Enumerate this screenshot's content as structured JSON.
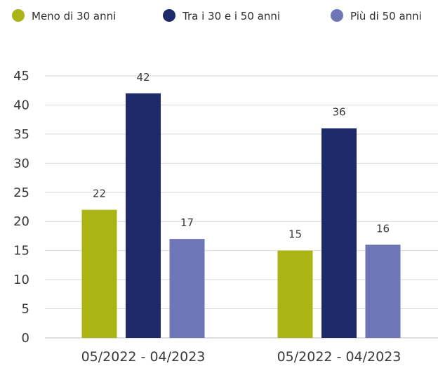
{
  "chart_data": {
    "type": "bar",
    "categories": [
      "05/2022 - 04/2023",
      "05/2022 - 04/2023"
    ],
    "series": [
      {
        "name": "Meno di 30 anni",
        "values": [
          22,
          15
        ],
        "color": "#aab515"
      },
      {
        "name": "Tra i 30 e i 50 anni",
        "values": [
          42,
          36
        ],
        "color": "#1f2a6b"
      },
      {
        "name": "Più di 50 anni",
        "values": [
          17,
          16
        ],
        "color": "#6f76b8"
      }
    ],
    "ylim": [
      0,
      45
    ],
    "yticks": [
      0,
      5,
      10,
      15,
      20,
      25,
      30,
      35,
      40,
      45
    ],
    "grid": true,
    "legend_position": "top",
    "data_labels": true
  }
}
